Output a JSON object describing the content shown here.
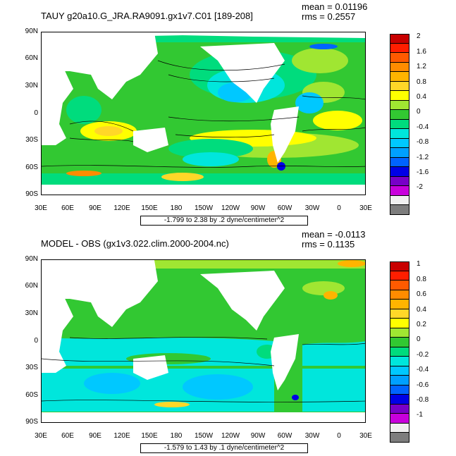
{
  "panels": [
    {
      "title": "TAUY g20a10.G_JRA.RA9091.gx1v7.C01 [189-208]",
      "mean": "mean = 0.01196",
      "rms": "rms = 0.2557",
      "range": "-1.799 to 2.38 by .2 dyne/centimeter^2",
      "lat_labels": [
        "90N",
        "60N",
        "30N",
        "0",
        "30S",
        "60S",
        "90S"
      ],
      "lon_labels": [
        "30E",
        "60E",
        "90E",
        "120E",
        "150E",
        "180",
        "150W",
        "120W",
        "90W",
        "60W",
        "30W",
        "0",
        "30E"
      ],
      "colorbar_labels": [
        "2",
        "1.6",
        "1.2",
        "0.8",
        "0.4",
        "0",
        "-0.4",
        "-0.8",
        "-1.2",
        "-1.6",
        "-2"
      ],
      "colorbar_colors": [
        "#c80000",
        "#ff1e00",
        "#ff5a00",
        "#ff8c00",
        "#ffb400",
        "#ffd728",
        "#ffff00",
        "#a0e632",
        "#32c832",
        "#00dc7d",
        "#00e6dc",
        "#00c8ff",
        "#00a0ff",
        "#0064ff",
        "#0000e6",
        "#7800c8",
        "#c800dc",
        "#f0f0f0",
        "#7d7d7d"
      ]
    },
    {
      "title": "MODEL - OBS (gx1v3.022.clim.2000-2004.nc)",
      "mean": "mean = -0.0113",
      "rms": "rms = 0.1135",
      "range": "-1.579 to 1.43 by .1 dyne/centimeter^2",
      "lat_labels": [
        "90N",
        "60N",
        "30N",
        "0",
        "30S",
        "60S",
        "90S"
      ],
      "lon_labels": [
        "30E",
        "60E",
        "90E",
        "120E",
        "150E",
        "180",
        "150W",
        "120W",
        "90W",
        "60W",
        "30W",
        "0",
        "30E"
      ],
      "colorbar_labels": [
        "1",
        "0.8",
        "0.6",
        "0.4",
        "0.2",
        "0",
        "-0.2",
        "-0.4",
        "-0.6",
        "-0.8",
        "-1"
      ],
      "colorbar_colors": [
        "#c80000",
        "#ff1e00",
        "#ff5a00",
        "#ff8c00",
        "#ffb400",
        "#ffd728",
        "#ffff00",
        "#a0e632",
        "#32c832",
        "#00dc7d",
        "#00e6dc",
        "#00c8ff",
        "#00a0ff",
        "#0064ff",
        "#0000e6",
        "#7800c8",
        "#c800dc",
        "#f0f0f0",
        "#7d7d7d"
      ]
    }
  ]
}
